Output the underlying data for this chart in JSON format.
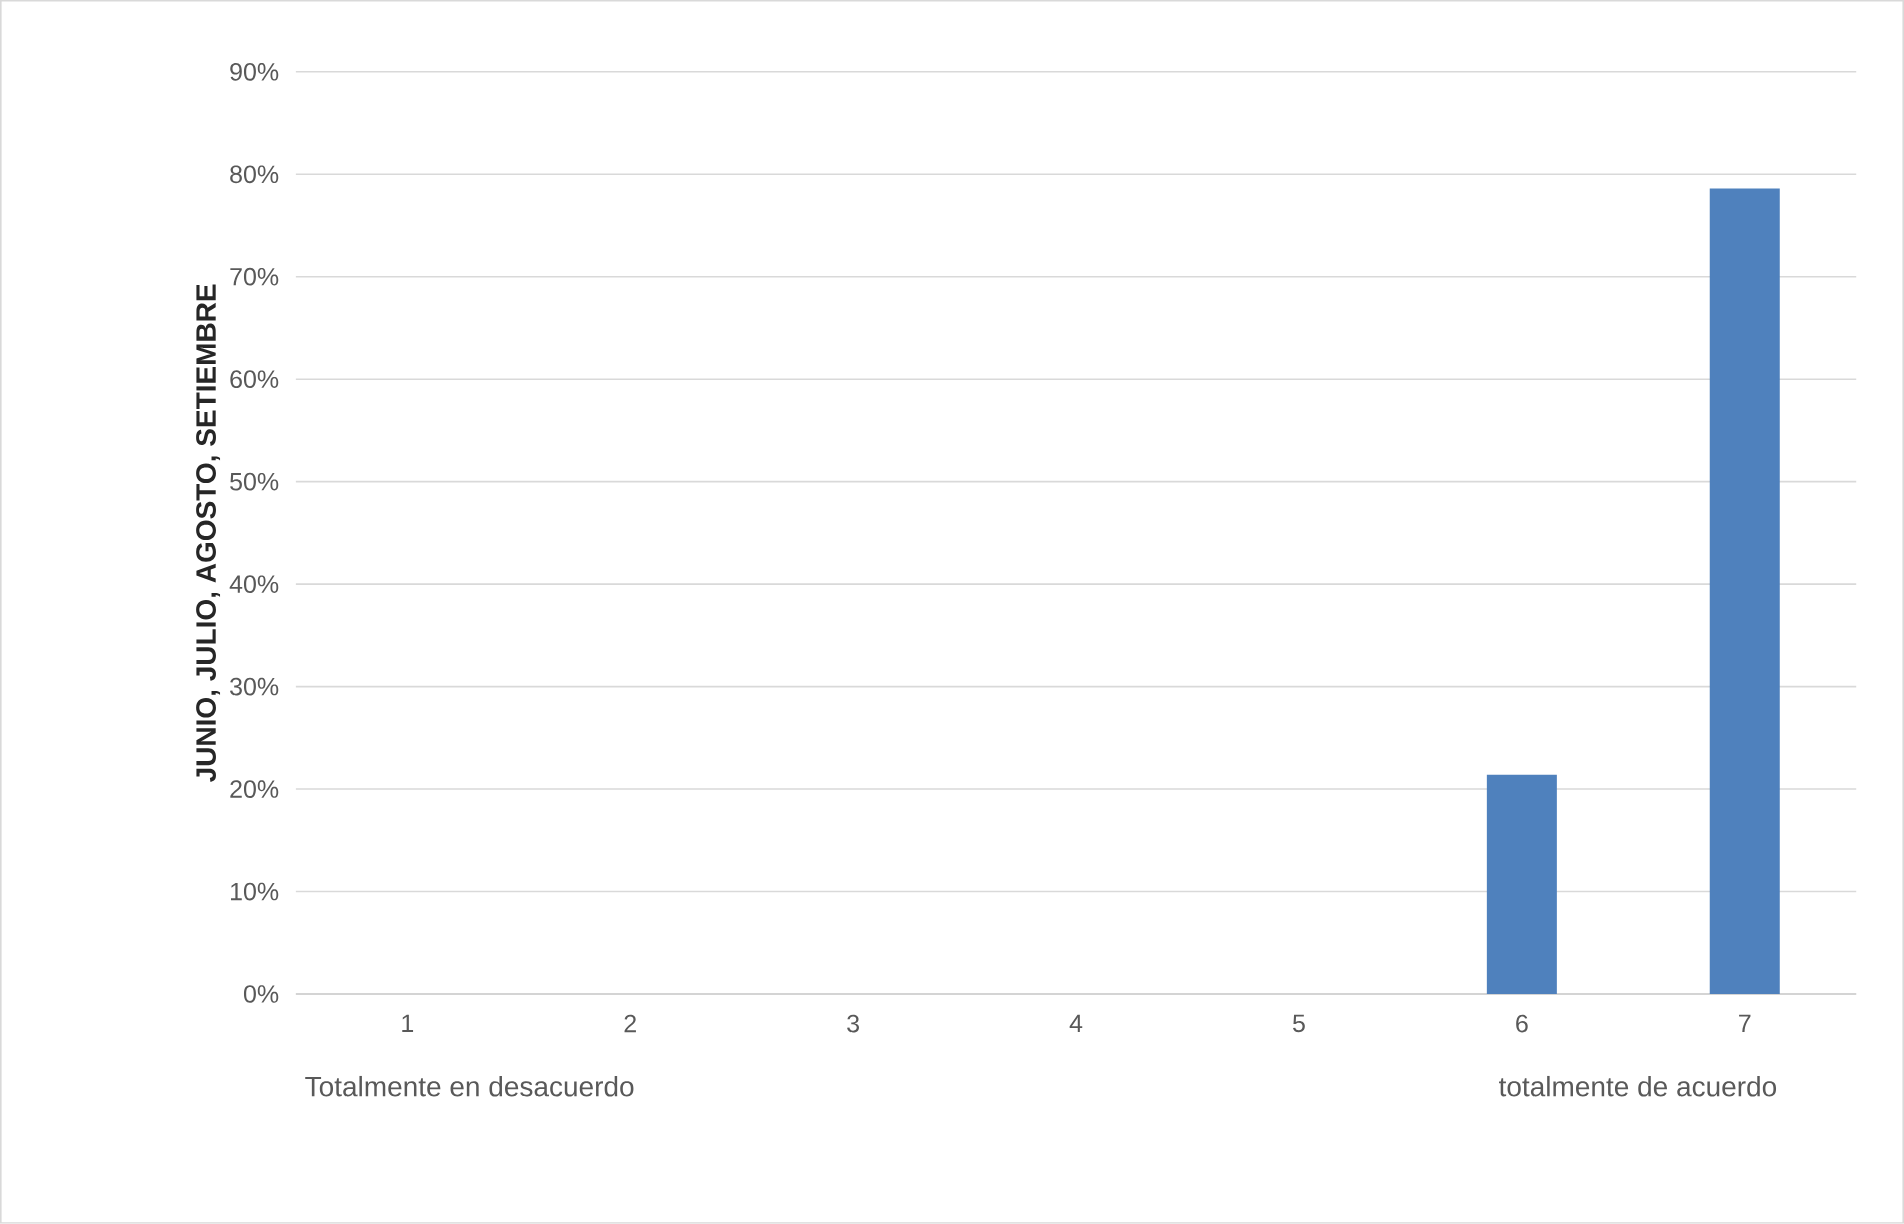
{
  "chart_data": {
    "type": "bar",
    "ylabel": "**JUNIO, JULIO, AGOSTO, SETIEMBRE**",
    "categories": [
      "1",
      "2",
      "3",
      "4",
      "5",
      "6",
      "7"
    ],
    "values": [
      0,
      0,
      0,
      0,
      0,
      21.4,
      78.6
    ],
    "color": "#4f81bd",
    "ylim": [
      0,
      90
    ],
    "yticks": [
      {
        "value": 0,
        "label": "0%"
      },
      {
        "value": 10,
        "label": "10%"
      },
      {
        "value": 20,
        "label": "20%"
      },
      {
        "value": 30,
        "label": "30%"
      },
      {
        "value": 40,
        "label": "40%"
      },
      {
        "value": 50,
        "label": "50%"
      },
      {
        "value": 60,
        "label": "60%"
      },
      {
        "value": 70,
        "label": "70%"
      },
      {
        "value": 80,
        "label": "80%"
      },
      {
        "value": 90,
        "label": "90%"
      }
    ],
    "grid": "y",
    "annotations": [
      "Totalmente en desacuerdo",
      "totalmente  de acuerdo"
    ]
  }
}
